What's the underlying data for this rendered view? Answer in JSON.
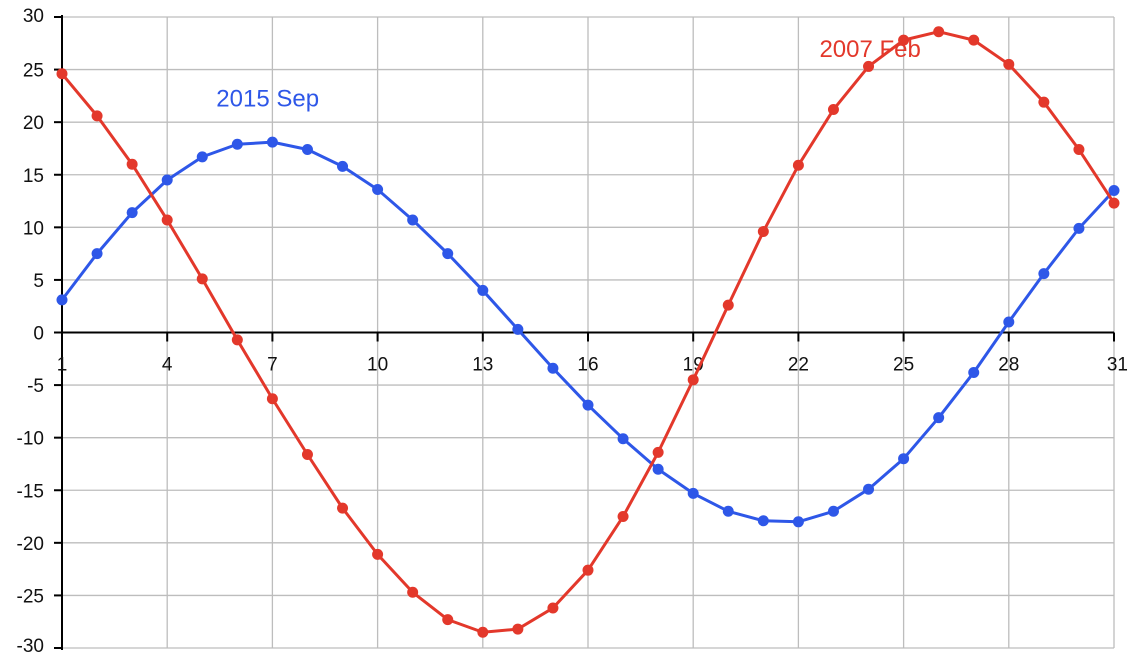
{
  "chart_data": {
    "type": "line",
    "title": "",
    "xlabel": "",
    "ylabel": "",
    "xlim": [
      1,
      31
    ],
    "ylim": [
      -30,
      30
    ],
    "x_ticks": [
      1,
      4,
      7,
      10,
      13,
      16,
      19,
      22,
      25,
      28,
      31
    ],
    "y_ticks": [
      30,
      25,
      20,
      15,
      10,
      5,
      0,
      -5,
      -10,
      -15,
      -20,
      -25,
      -30
    ],
    "grid": true,
    "legend": "none",
    "x": [
      1,
      2,
      3,
      4,
      5,
      6,
      7,
      8,
      9,
      10,
      11,
      12,
      13,
      14,
      15,
      16,
      17,
      18,
      19,
      20,
      21,
      22,
      23,
      24,
      25,
      26,
      27,
      28,
      29,
      30,
      31
    ],
    "series": [
      {
        "name": "2015 Sep",
        "color": "#2e57e8",
        "label_at": [
          5.4,
          21.5
        ],
        "values": [
          3.1,
          7.5,
          11.4,
          14.5,
          16.7,
          17.9,
          18.1,
          17.4,
          15.8,
          13.6,
          10.7,
          7.5,
          4.0,
          0.3,
          -3.4,
          -6.9,
          -10.1,
          -13.0,
          -15.3,
          -17.0,
          -17.9,
          -18.0,
          -17.0,
          -14.9,
          -12.0,
          -8.1,
          -3.8,
          1.0,
          5.6,
          9.9,
          13.5
        ]
      },
      {
        "name": "2007 Feb",
        "color": "#e3382b",
        "label_at": [
          22.6,
          26.2
        ],
        "values": [
          24.6,
          20.6,
          16.0,
          10.7,
          5.1,
          -0.7,
          -6.3,
          -11.6,
          -16.7,
          -21.1,
          -24.7,
          -27.3,
          -28.5,
          -28.2,
          -26.2,
          -22.6,
          -17.5,
          -11.4,
          -4.5,
          2.6,
          9.6,
          15.9,
          21.2,
          25.3,
          27.8,
          28.6,
          27.8,
          25.5,
          21.9,
          17.4,
          12.3
        ]
      }
    ]
  }
}
